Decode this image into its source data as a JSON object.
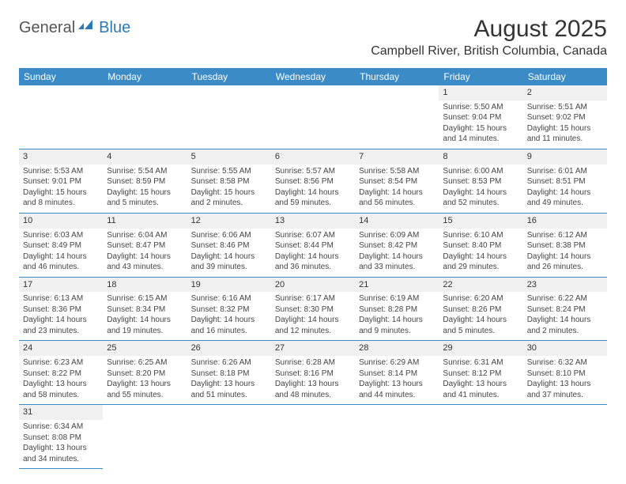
{
  "brand": {
    "part1": "General",
    "part2": "Blue"
  },
  "title": "August 2025",
  "location": "Campbell River, British Columbia, Canada",
  "colors": {
    "header_bg": "#3b8bc7",
    "header_text": "#ffffff",
    "cell_border": "#3b8bc7",
    "daynum_bg": "#f0f0f0",
    "body_text": "#444444",
    "brand_accent": "#2a7ab9"
  },
  "weekdays": [
    "Sunday",
    "Monday",
    "Tuesday",
    "Wednesday",
    "Thursday",
    "Friday",
    "Saturday"
  ],
  "leading_blanks": 5,
  "days": [
    {
      "n": 1,
      "sunrise": "5:50 AM",
      "sunset": "9:04 PM",
      "daylight": "15 hours and 14 minutes."
    },
    {
      "n": 2,
      "sunrise": "5:51 AM",
      "sunset": "9:02 PM",
      "daylight": "15 hours and 11 minutes."
    },
    {
      "n": 3,
      "sunrise": "5:53 AM",
      "sunset": "9:01 PM",
      "daylight": "15 hours and 8 minutes."
    },
    {
      "n": 4,
      "sunrise": "5:54 AM",
      "sunset": "8:59 PM",
      "daylight": "15 hours and 5 minutes."
    },
    {
      "n": 5,
      "sunrise": "5:55 AM",
      "sunset": "8:58 PM",
      "daylight": "15 hours and 2 minutes."
    },
    {
      "n": 6,
      "sunrise": "5:57 AM",
      "sunset": "8:56 PM",
      "daylight": "14 hours and 59 minutes."
    },
    {
      "n": 7,
      "sunrise": "5:58 AM",
      "sunset": "8:54 PM",
      "daylight": "14 hours and 56 minutes."
    },
    {
      "n": 8,
      "sunrise": "6:00 AM",
      "sunset": "8:53 PM",
      "daylight": "14 hours and 52 minutes."
    },
    {
      "n": 9,
      "sunrise": "6:01 AM",
      "sunset": "8:51 PM",
      "daylight": "14 hours and 49 minutes."
    },
    {
      "n": 10,
      "sunrise": "6:03 AM",
      "sunset": "8:49 PM",
      "daylight": "14 hours and 46 minutes."
    },
    {
      "n": 11,
      "sunrise": "6:04 AM",
      "sunset": "8:47 PM",
      "daylight": "14 hours and 43 minutes."
    },
    {
      "n": 12,
      "sunrise": "6:06 AM",
      "sunset": "8:46 PM",
      "daylight": "14 hours and 39 minutes."
    },
    {
      "n": 13,
      "sunrise": "6:07 AM",
      "sunset": "8:44 PM",
      "daylight": "14 hours and 36 minutes."
    },
    {
      "n": 14,
      "sunrise": "6:09 AM",
      "sunset": "8:42 PM",
      "daylight": "14 hours and 33 minutes."
    },
    {
      "n": 15,
      "sunrise": "6:10 AM",
      "sunset": "8:40 PM",
      "daylight": "14 hours and 29 minutes."
    },
    {
      "n": 16,
      "sunrise": "6:12 AM",
      "sunset": "8:38 PM",
      "daylight": "14 hours and 26 minutes."
    },
    {
      "n": 17,
      "sunrise": "6:13 AM",
      "sunset": "8:36 PM",
      "daylight": "14 hours and 23 minutes."
    },
    {
      "n": 18,
      "sunrise": "6:15 AM",
      "sunset": "8:34 PM",
      "daylight": "14 hours and 19 minutes."
    },
    {
      "n": 19,
      "sunrise": "6:16 AM",
      "sunset": "8:32 PM",
      "daylight": "14 hours and 16 minutes."
    },
    {
      "n": 20,
      "sunrise": "6:17 AM",
      "sunset": "8:30 PM",
      "daylight": "14 hours and 12 minutes."
    },
    {
      "n": 21,
      "sunrise": "6:19 AM",
      "sunset": "8:28 PM",
      "daylight": "14 hours and 9 minutes."
    },
    {
      "n": 22,
      "sunrise": "6:20 AM",
      "sunset": "8:26 PM",
      "daylight": "14 hours and 5 minutes."
    },
    {
      "n": 23,
      "sunrise": "6:22 AM",
      "sunset": "8:24 PM",
      "daylight": "14 hours and 2 minutes."
    },
    {
      "n": 24,
      "sunrise": "6:23 AM",
      "sunset": "8:22 PM",
      "daylight": "13 hours and 58 minutes."
    },
    {
      "n": 25,
      "sunrise": "6:25 AM",
      "sunset": "8:20 PM",
      "daylight": "13 hours and 55 minutes."
    },
    {
      "n": 26,
      "sunrise": "6:26 AM",
      "sunset": "8:18 PM",
      "daylight": "13 hours and 51 minutes."
    },
    {
      "n": 27,
      "sunrise": "6:28 AM",
      "sunset": "8:16 PM",
      "daylight": "13 hours and 48 minutes."
    },
    {
      "n": 28,
      "sunrise": "6:29 AM",
      "sunset": "8:14 PM",
      "daylight": "13 hours and 44 minutes."
    },
    {
      "n": 29,
      "sunrise": "6:31 AM",
      "sunset": "8:12 PM",
      "daylight": "13 hours and 41 minutes."
    },
    {
      "n": 30,
      "sunrise": "6:32 AM",
      "sunset": "8:10 PM",
      "daylight": "13 hours and 37 minutes."
    },
    {
      "n": 31,
      "sunrise": "6:34 AM",
      "sunset": "8:08 PM",
      "daylight": "13 hours and 34 minutes."
    }
  ],
  "labels": {
    "sunrise": "Sunrise: ",
    "sunset": "Sunset: ",
    "daylight": "Daylight: "
  }
}
